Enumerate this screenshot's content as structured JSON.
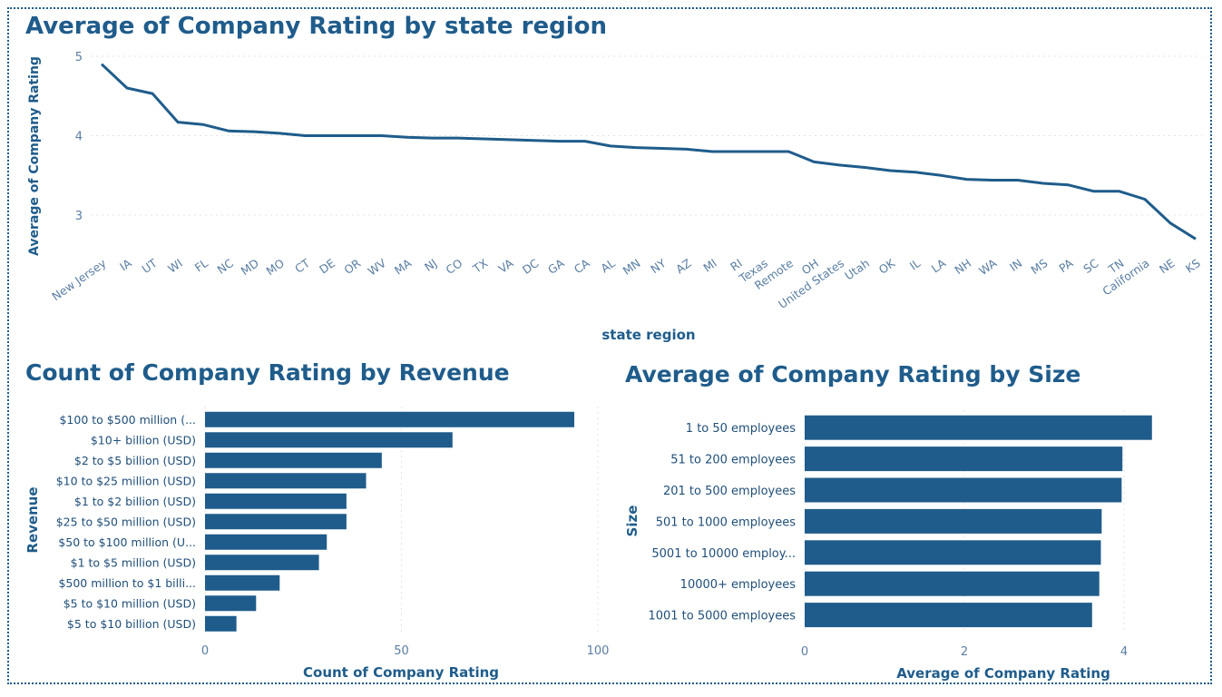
{
  "chart_data": [
    {
      "type": "line",
      "title": "Average of Company Rating by state region",
      "xlabel": "state region",
      "ylabel": "Average of Company Rating",
      "yticks": [
        "5",
        "4",
        "3"
      ],
      "ylim": [
        2.7,
        5.0
      ],
      "grid": true,
      "series": [
        {
          "x": [
            "New Jersey",
            "IA",
            "UT",
            "WI",
            "FL",
            "NC",
            "MD",
            "MO",
            "CT",
            "DE",
            "OR",
            "WV",
            "MA",
            "NJ",
            "CO",
            "TX",
            "VA",
            "DC",
            "GA",
            "CA",
            "AL",
            "MN",
            "NY",
            "AZ",
            "MI",
            "RI",
            "Texas",
            "Remote",
            "OH",
            "United States",
            "Utah",
            "OK",
            "IL",
            "LA",
            "NH",
            "WA",
            "IN",
            "MS",
            "PA",
            "SC",
            "TN",
            "California",
            "NE",
            "KS"
          ],
          "values": [
            4.9,
            4.6,
            4.53,
            4.17,
            4.14,
            4.06,
            4.05,
            4.03,
            4.0,
            4.0,
            4.0,
            4.0,
            3.98,
            3.97,
            3.97,
            3.96,
            3.95,
            3.94,
            3.93,
            3.93,
            3.87,
            3.85,
            3.84,
            3.83,
            3.8,
            3.8,
            3.8,
            3.8,
            3.67,
            3.63,
            3.6,
            3.56,
            3.54,
            3.5,
            3.45,
            3.44,
            3.44,
            3.4,
            3.38,
            3.3,
            3.3,
            3.2,
            2.9,
            2.7
          ]
        }
      ]
    },
    {
      "type": "bar",
      "orientation": "horizontal",
      "title": "Count of Company Rating by Revenue",
      "xlabel": "Count of Company Rating",
      "ylabel": "Revenue",
      "xticks": [
        "0",
        "50",
        "100"
      ],
      "xlim": [
        0,
        100
      ],
      "grid": true,
      "categories": [
        "$100 to $500 million (...",
        "$10+ billion (USD)",
        "$2 to $5 billion (USD)",
        "$10 to $25 million (USD)",
        "$1 to $2 billion (USD)",
        "$25 to $50 million (USD)",
        "$50 to $100 million (U...",
        "$1 to $5 million (USD)",
        "$500 million to $1 billi...",
        "$5 to $10 million (USD)",
        "$5 to $10 billion (USD)"
      ],
      "values": [
        94,
        63,
        45,
        41,
        36,
        36,
        31,
        29,
        19,
        13,
        8
      ]
    },
    {
      "type": "bar",
      "orientation": "horizontal",
      "title": "Average of Company Rating by Size",
      "xlabel": "Average of Company Rating",
      "ylabel": "Size",
      "xticks": [
        "0",
        "2",
        "4"
      ],
      "xlim": [
        0,
        4.2
      ],
      "grid": true,
      "categories": [
        "1 to 50 employees",
        "51 to 200 employees",
        "201 to 500 employees",
        "501 to 1000 employees",
        "5001 to 10000 employ...",
        "10000+ employees",
        "1001 to 5000 employees"
      ],
      "values": [
        4.35,
        3.98,
        3.97,
        3.72,
        3.71,
        3.69,
        3.6
      ]
    }
  ],
  "colors": {
    "bar": "#1f5c8b",
    "line": "#1f5c8b",
    "title": "#1f5c8b",
    "grid": "#e3e3e3",
    "tick": "#5a7ea3"
  }
}
